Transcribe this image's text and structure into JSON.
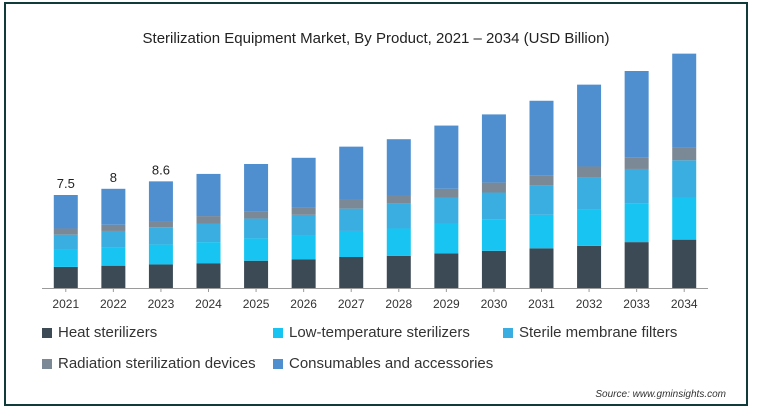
{
  "chart_data": {
    "type": "bar",
    "stacked": true,
    "title": "Sterilization Equipment Market, By Product, 2021 – 2034 (USD Billion)",
    "categories": [
      "2021",
      "2022",
      "2023",
      "2024",
      "2025",
      "2026",
      "2027",
      "2028",
      "2029",
      "2030",
      "2031",
      "2032",
      "2033",
      "2034"
    ],
    "series": [
      {
        "name": "Heat sterilizers",
        "color": "#3c4a55",
        "values": [
          1.7,
          1.8,
          1.9,
          2.0,
          2.2,
          2.3,
          2.5,
          2.6,
          2.8,
          3.0,
          3.2,
          3.4,
          3.7,
          3.9
        ]
      },
      {
        "name": "Low-temperature sterilizers",
        "color": "#18c5f2",
        "values": [
          1.4,
          1.5,
          1.6,
          1.7,
          1.8,
          1.9,
          2.1,
          2.2,
          2.4,
          2.5,
          2.7,
          2.9,
          3.1,
          3.4
        ]
      },
      {
        "name": "Sterile membrane filters",
        "color": "#3aaee0",
        "values": [
          1.2,
          1.3,
          1.4,
          1.5,
          1.6,
          1.7,
          1.8,
          2.0,
          2.1,
          2.2,
          2.4,
          2.6,
          2.8,
          3.0
        ]
      },
      {
        "name": "Radiation sterilization devices",
        "color": "#7b8896",
        "values": [
          0.5,
          0.5,
          0.5,
          0.6,
          0.6,
          0.6,
          0.7,
          0.7,
          0.7,
          0.8,
          0.8,
          0.9,
          0.9,
          1.0
        ]
      },
      {
        "name": "Consumables and accessories",
        "color": "#4f8fcf",
        "values": [
          2.7,
          2.9,
          3.2,
          3.4,
          3.8,
          4.0,
          4.3,
          4.5,
          5.1,
          5.5,
          6.0,
          6.6,
          7.0,
          7.6
        ]
      }
    ],
    "data_labels": [
      "7.5",
      "8",
      "8.6"
    ],
    "ylim": [
      0,
      20
    ],
    "legend_position": "bottom"
  },
  "legend_items": [
    {
      "label": "Heat sterilizers",
      "color": "#3c4a55"
    },
    {
      "label": "Low-temperature sterilizers",
      "color": "#18c5f2"
    },
    {
      "label": "Sterile membrane filters",
      "color": "#3aaee0"
    },
    {
      "label": "Radiation sterilization devices",
      "color": "#7b8896"
    },
    {
      "label": "Consumables and accessories",
      "color": "#4f8fcf"
    }
  ],
  "source_text": "Source: www.gminsights.com"
}
